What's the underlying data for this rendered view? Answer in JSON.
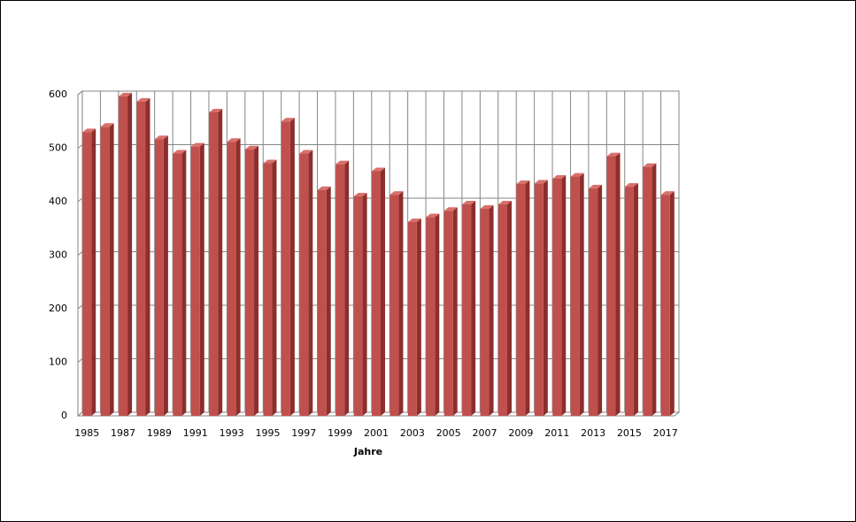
{
  "chart_data": {
    "type": "bar3d",
    "x_label": "Jahre",
    "categories": [
      "1985",
      null,
      "1987",
      null,
      "1989",
      null,
      "1991",
      null,
      "1993",
      null,
      "1995",
      null,
      "1997",
      null,
      "1999",
      null,
      "2001",
      null,
      "2003",
      null,
      "2005",
      null,
      "2007",
      null,
      "2009",
      null,
      "2011",
      null,
      "2013",
      null,
      "2015",
      null,
      "2017"
    ],
    "values": [
      530,
      540,
      597,
      587,
      517,
      490,
      503,
      567,
      512,
      498,
      472,
      550,
      490,
      422,
      470,
      410,
      457,
      413,
      362,
      371,
      383,
      395,
      387,
      395,
      433,
      434,
      443,
      447,
      425,
      485,
      428,
      465,
      413
    ],
    "color": "#c0504d",
    "ylim": [
      0,
      600
    ],
    "yticks": [
      0,
      100,
      200,
      300,
      400,
      500,
      600
    ],
    "grid": true
  }
}
